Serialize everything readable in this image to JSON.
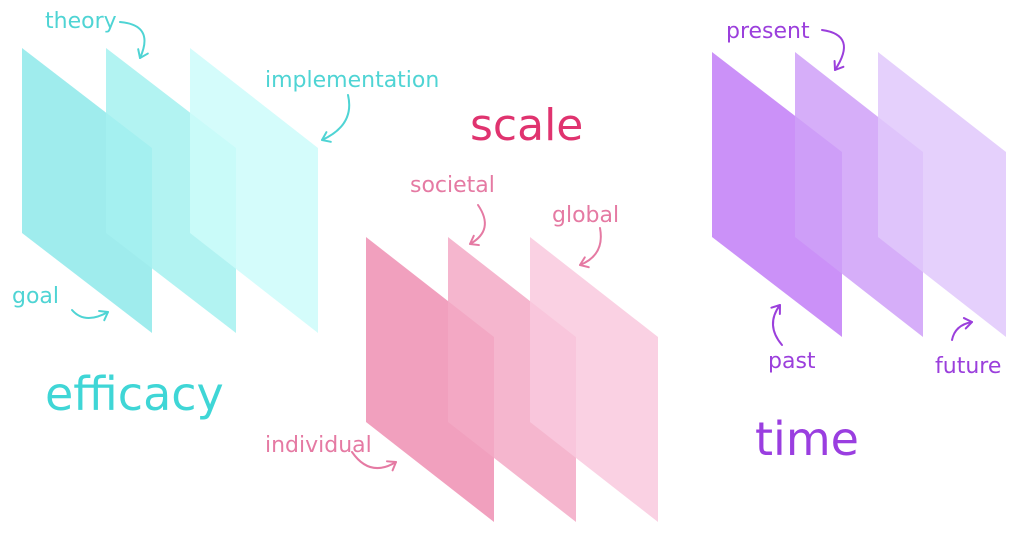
{
  "groups": [
    {
      "key": "efficacy",
      "title": "efficacy",
      "color": "#3fd6d6",
      "layers": [
        {
          "label": "goal",
          "fill": "#8ee9ea"
        },
        {
          "label": "theory",
          "fill": "#a5f1f0"
        },
        {
          "label": "implementation",
          "fill": "#ccfbfa"
        }
      ]
    },
    {
      "key": "scale",
      "title": "scale",
      "color": "#e0336f",
      "layers": [
        {
          "label": "individual",
          "fill": "#ef8fb3"
        },
        {
          "label": "societal",
          "fill": "#f3a9c6"
        },
        {
          "label": "global",
          "fill": "#f9c9de"
        }
      ]
    },
    {
      "key": "time",
      "title": "time",
      "color": "#9a3ee0",
      "layers": [
        {
          "label": "past",
          "fill": "#c27ef7"
        },
        {
          "label": "present",
          "fill": "#cfa0f8"
        },
        {
          "label": "future",
          "fill": "#e0c8fb"
        }
      ]
    }
  ],
  "label_colors": {
    "efficacy": "#4fd4d4",
    "scale": "#e57aa3",
    "time": "#9b3fdc"
  }
}
